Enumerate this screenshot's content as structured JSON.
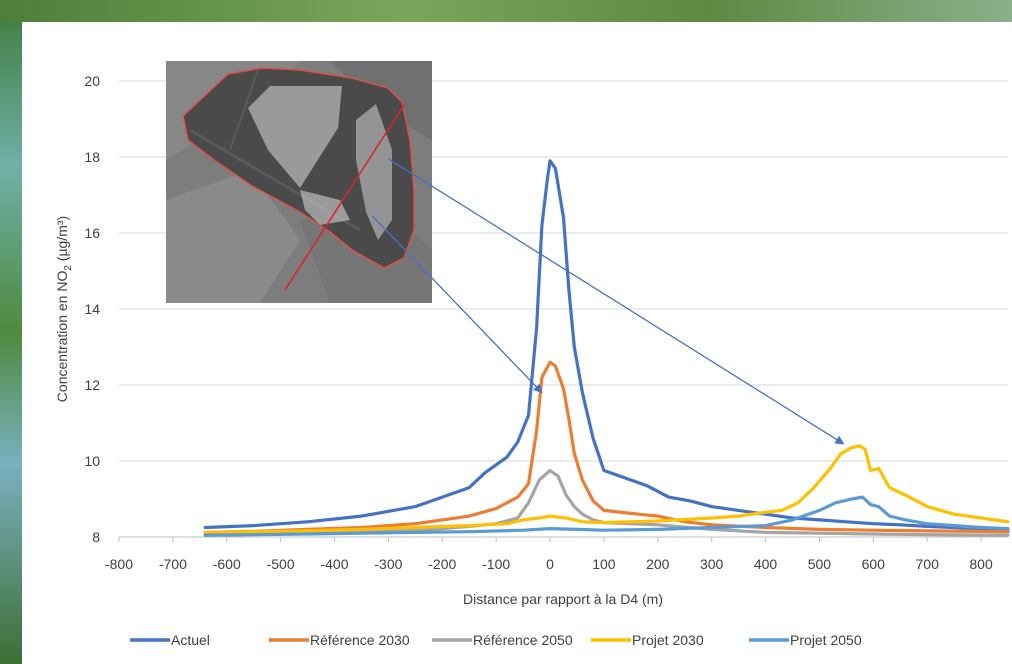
{
  "chart_data": {
    "type": "line",
    "title": "",
    "xlabel": "Distance par rapport à la D4 (m)",
    "ylabel_parts": [
      "Concentration  en NO",
      "2",
      " (µg/m³)"
    ],
    "xlim": [
      -800,
      850
    ],
    "ylim": [
      8,
      20
    ],
    "xticks": [
      -800,
      -700,
      -600,
      -500,
      -400,
      -300,
      -200,
      -100,
      0,
      100,
      200,
      300,
      400,
      500,
      600,
      700,
      800
    ],
    "yticks": [
      8,
      10,
      12,
      14,
      16,
      18,
      20
    ],
    "grid": "horizontal",
    "legend_position": "bottom",
    "series": [
      {
        "name": "Actuel",
        "color": "#4472C4",
        "points": [
          [
            -640,
            8.25
          ],
          [
            -550,
            8.3
          ],
          [
            -450,
            8.4
          ],
          [
            -350,
            8.55
          ],
          [
            -250,
            8.8
          ],
          [
            -200,
            9.05
          ],
          [
            -150,
            9.3
          ],
          [
            -120,
            9.7
          ],
          [
            -80,
            10.1
          ],
          [
            -60,
            10.5
          ],
          [
            -40,
            11.2
          ],
          [
            -25,
            13.5
          ],
          [
            -15,
            16.2
          ],
          [
            -5,
            17.4
          ],
          [
            0,
            17.9
          ],
          [
            10,
            17.7
          ],
          [
            25,
            16.4
          ],
          [
            35,
            14.5
          ],
          [
            45,
            13
          ],
          [
            60,
            11.8
          ],
          [
            80,
            10.6
          ],
          [
            100,
            9.75
          ],
          [
            120,
            9.65
          ],
          [
            150,
            9.5
          ],
          [
            180,
            9.35
          ],
          [
            220,
            9.05
          ],
          [
            260,
            8.95
          ],
          [
            300,
            8.8
          ],
          [
            350,
            8.7
          ],
          [
            400,
            8.6
          ],
          [
            450,
            8.5
          ],
          [
            500,
            8.45
          ],
          [
            550,
            8.4
          ],
          [
            600,
            8.35
          ],
          [
            650,
            8.32
          ],
          [
            700,
            8.28
          ],
          [
            750,
            8.25
          ],
          [
            800,
            8.22
          ],
          [
            850,
            8.2
          ]
        ]
      },
      {
        "name": "Référence 2030",
        "color": "#ED7D31",
        "points": [
          [
            -640,
            8.12
          ],
          [
            -550,
            8.15
          ],
          [
            -450,
            8.2
          ],
          [
            -350,
            8.25
          ],
          [
            -250,
            8.35
          ],
          [
            -200,
            8.45
          ],
          [
            -150,
            8.55
          ],
          [
            -100,
            8.75
          ],
          [
            -60,
            9.05
          ],
          [
            -40,
            9.4
          ],
          [
            -25,
            10.8
          ],
          [
            -15,
            12.2
          ],
          [
            0,
            12.6
          ],
          [
            10,
            12.5
          ],
          [
            25,
            11.9
          ],
          [
            35,
            11.1
          ],
          [
            45,
            10.2
          ],
          [
            60,
            9.5
          ],
          [
            80,
            8.95
          ],
          [
            100,
            8.7
          ],
          [
            150,
            8.62
          ],
          [
            200,
            8.55
          ],
          [
            250,
            8.4
          ],
          [
            300,
            8.32
          ],
          [
            400,
            8.25
          ],
          [
            500,
            8.2
          ],
          [
            600,
            8.18
          ],
          [
            700,
            8.16
          ],
          [
            850,
            8.14
          ]
        ]
      },
      {
        "name": "Référence 2050",
        "color": "#A5A5A5",
        "points": [
          [
            -640,
            8.05
          ],
          [
            -550,
            8.07
          ],
          [
            -450,
            8.1
          ],
          [
            -350,
            8.13
          ],
          [
            -250,
            8.18
          ],
          [
            -200,
            8.22
          ],
          [
            -150,
            8.28
          ],
          [
            -100,
            8.35
          ],
          [
            -60,
            8.5
          ],
          [
            -40,
            8.9
          ],
          [
            -20,
            9.5
          ],
          [
            0,
            9.75
          ],
          [
            15,
            9.6
          ],
          [
            30,
            9.1
          ],
          [
            45,
            8.8
          ],
          [
            60,
            8.6
          ],
          [
            80,
            8.45
          ],
          [
            100,
            8.38
          ],
          [
            200,
            8.32
          ],
          [
            300,
            8.2
          ],
          [
            400,
            8.12
          ],
          [
            500,
            8.1
          ],
          [
            600,
            8.08
          ],
          [
            700,
            8.06
          ],
          [
            850,
            8.05
          ]
        ]
      },
      {
        "name": "Projet 2030",
        "color": "#FFC000",
        "points": [
          [
            -640,
            8.12
          ],
          [
            -550,
            8.14
          ],
          [
            -450,
            8.16
          ],
          [
            -350,
            8.2
          ],
          [
            -250,
            8.25
          ],
          [
            -150,
            8.3
          ],
          [
            -80,
            8.35
          ],
          [
            -50,
            8.45
          ],
          [
            -20,
            8.5
          ],
          [
            0,
            8.55
          ],
          [
            30,
            8.5
          ],
          [
            60,
            8.4
          ],
          [
            100,
            8.38
          ],
          [
            200,
            8.42
          ],
          [
            300,
            8.5
          ],
          [
            350,
            8.55
          ],
          [
            400,
            8.65
          ],
          [
            430,
            8.7
          ],
          [
            460,
            8.9
          ],
          [
            490,
            9.3
          ],
          [
            520,
            9.8
          ],
          [
            540,
            10.2
          ],
          [
            560,
            10.35
          ],
          [
            575,
            10.4
          ],
          [
            585,
            10.3
          ],
          [
            595,
            9.75
          ],
          [
            610,
            9.8
          ],
          [
            630,
            9.3
          ],
          [
            660,
            9.1
          ],
          [
            700,
            8.8
          ],
          [
            750,
            8.6
          ],
          [
            800,
            8.5
          ],
          [
            850,
            8.4
          ]
        ]
      },
      {
        "name": "Projet 2050",
        "color": "#5B9BD5",
        "points": [
          [
            -640,
            8.05
          ],
          [
            -550,
            8.06
          ],
          [
            -450,
            8.08
          ],
          [
            -350,
            8.1
          ],
          [
            -250,
            8.12
          ],
          [
            -150,
            8.14
          ],
          [
            -50,
            8.18
          ],
          [
            0,
            8.22
          ],
          [
            50,
            8.2
          ],
          [
            100,
            8.18
          ],
          [
            200,
            8.2
          ],
          [
            300,
            8.25
          ],
          [
            400,
            8.3
          ],
          [
            450,
            8.45
          ],
          [
            500,
            8.7
          ],
          [
            530,
            8.9
          ],
          [
            560,
            9.0
          ],
          [
            580,
            9.05
          ],
          [
            595,
            8.85
          ],
          [
            610,
            8.8
          ],
          [
            630,
            8.55
          ],
          [
            660,
            8.45
          ],
          [
            700,
            8.35
          ],
          [
            750,
            8.3
          ],
          [
            800,
            8.25
          ],
          [
            850,
            8.22
          ]
        ]
      }
    ],
    "arrows": [
      {
        "from_data": [
          -330,
          16.45
        ],
        "to_data": [
          -15,
          11.8
        ]
      },
      {
        "from_data": [
          -300,
          17.95
        ],
        "to_data": [
          545,
          10.45
        ]
      }
    ]
  }
}
